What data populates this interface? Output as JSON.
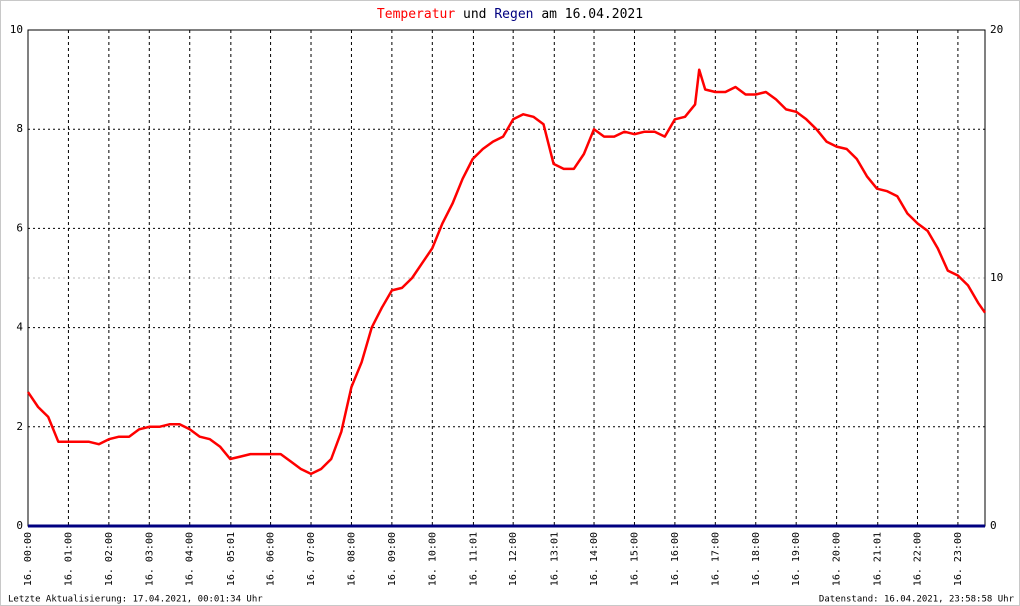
{
  "chart_data": {
    "type": "line",
    "title_connector": "und",
    "title_date": "am 16.04.2021",
    "footer_left": "Letzte Aktualisierung: 17.04.2021, 00:01:34 Uhr",
    "footer_right": "Datenstand: 16.04.2021, 23:58:58 Uhr",
    "xlim": [
      0,
      23.67
    ],
    "xticks": [
      {
        "value": 0,
        "label": "16. 00:00"
      },
      {
        "value": 1,
        "label": "16. 01:00"
      },
      {
        "value": 2,
        "label": "16. 02:00"
      },
      {
        "value": 3,
        "label": "16. 03:00"
      },
      {
        "value": 4,
        "label": "16. 04:00"
      },
      {
        "value": 5.017,
        "label": "16. 05:01"
      },
      {
        "value": 6,
        "label": "16. 06:00"
      },
      {
        "value": 7,
        "label": "16. 07:00"
      },
      {
        "value": 8,
        "label": "16. 08:00"
      },
      {
        "value": 9,
        "label": "16. 09:00"
      },
      {
        "value": 10,
        "label": "16. 10:00"
      },
      {
        "value": 11.017,
        "label": "16. 11:01"
      },
      {
        "value": 12,
        "label": "16. 12:00"
      },
      {
        "value": 13.017,
        "label": "16. 13:01"
      },
      {
        "value": 14,
        "label": "16. 14:00"
      },
      {
        "value": 15,
        "label": "16. 15:00"
      },
      {
        "value": 16,
        "label": "16. 16:00"
      },
      {
        "value": 17,
        "label": "16. 17:00"
      },
      {
        "value": 18,
        "label": "16. 18:00"
      },
      {
        "value": 19,
        "label": "16. 19:00"
      },
      {
        "value": 20,
        "label": "16. 20:00"
      },
      {
        "value": 21.017,
        "label": "16. 21:01"
      },
      {
        "value": 22,
        "label": "16. 22:00"
      },
      {
        "value": 23,
        "label": "16. 23:00"
      }
    ],
    "ylim": [
      0,
      10
    ],
    "yticks": [
      0,
      2,
      4,
      6,
      8,
      10
    ],
    "y2lim": [
      0,
      20
    ],
    "y2ticks": [
      0,
      10,
      20
    ],
    "grid": true,
    "series": [
      {
        "name": "Temperatur",
        "color": "#ff0000",
        "x": [
          0,
          0.25,
          0.5,
          0.75,
          1,
          1.25,
          1.5,
          1.75,
          2,
          2.25,
          2.5,
          2.75,
          3,
          3.25,
          3.5,
          3.75,
          4,
          4.25,
          4.5,
          4.75,
          5,
          5.25,
          5.5,
          5.75,
          6,
          6.25,
          6.5,
          6.75,
          7,
          7.25,
          7.5,
          7.75,
          8,
          8.25,
          8.5,
          8.75,
          9,
          9.25,
          9.5,
          9.75,
          10,
          10.25,
          10.5,
          10.75,
          11,
          11.25,
          11.5,
          11.75,
          12,
          12.25,
          12.5,
          12.75,
          13,
          13.25,
          13.5,
          13.75,
          14,
          14.25,
          14.5,
          14.75,
          15,
          15.25,
          15.5,
          15.75,
          16,
          16.25,
          16.5,
          16.6,
          16.75,
          17,
          17.25,
          17.5,
          17.75,
          18,
          18.25,
          18.5,
          18.75,
          19,
          19.25,
          19.5,
          19.75,
          20,
          20.25,
          20.5,
          20.75,
          21,
          21.25,
          21.5,
          21.75,
          22,
          22.25,
          22.5,
          22.75,
          23,
          23.25,
          23.5,
          23.67
        ],
        "values": [
          2.7,
          2.4,
          2.2,
          1.7,
          1.7,
          1.7,
          1.7,
          1.65,
          1.75,
          1.8,
          1.8,
          1.95,
          2.0,
          2.0,
          2.05,
          2.05,
          1.95,
          1.8,
          1.75,
          1.6,
          1.35,
          1.4,
          1.45,
          1.45,
          1.45,
          1.45,
          1.3,
          1.15,
          1.05,
          1.15,
          1.35,
          1.9,
          2.8,
          3.3,
          4.0,
          4.4,
          4.75,
          4.8,
          5.0,
          5.3,
          5.6,
          6.1,
          6.5,
          7.0,
          7.4,
          7.6,
          7.75,
          7.85,
          8.2,
          8.3,
          8.25,
          8.1,
          7.3,
          7.2,
          7.2,
          7.5,
          8.0,
          7.85,
          7.85,
          7.95,
          7.9,
          7.95,
          7.95,
          7.85,
          8.2,
          8.25,
          8.5,
          9.2,
          8.8,
          8.75,
          8.75,
          8.85,
          8.7,
          8.7,
          8.75,
          8.6,
          8.4,
          8.35,
          8.2,
          8.0,
          7.75,
          7.65,
          7.6,
          7.4,
          7.05,
          6.8,
          6.75,
          6.65,
          6.3,
          6.1,
          5.95,
          5.6,
          5.15,
          5.05,
          4.85,
          4.5,
          4.3
        ]
      },
      {
        "name": "Regen",
        "color": "#000080",
        "axis": "y2",
        "x": [
          0,
          23.67
        ],
        "values": [
          0,
          0
        ]
      }
    ]
  }
}
